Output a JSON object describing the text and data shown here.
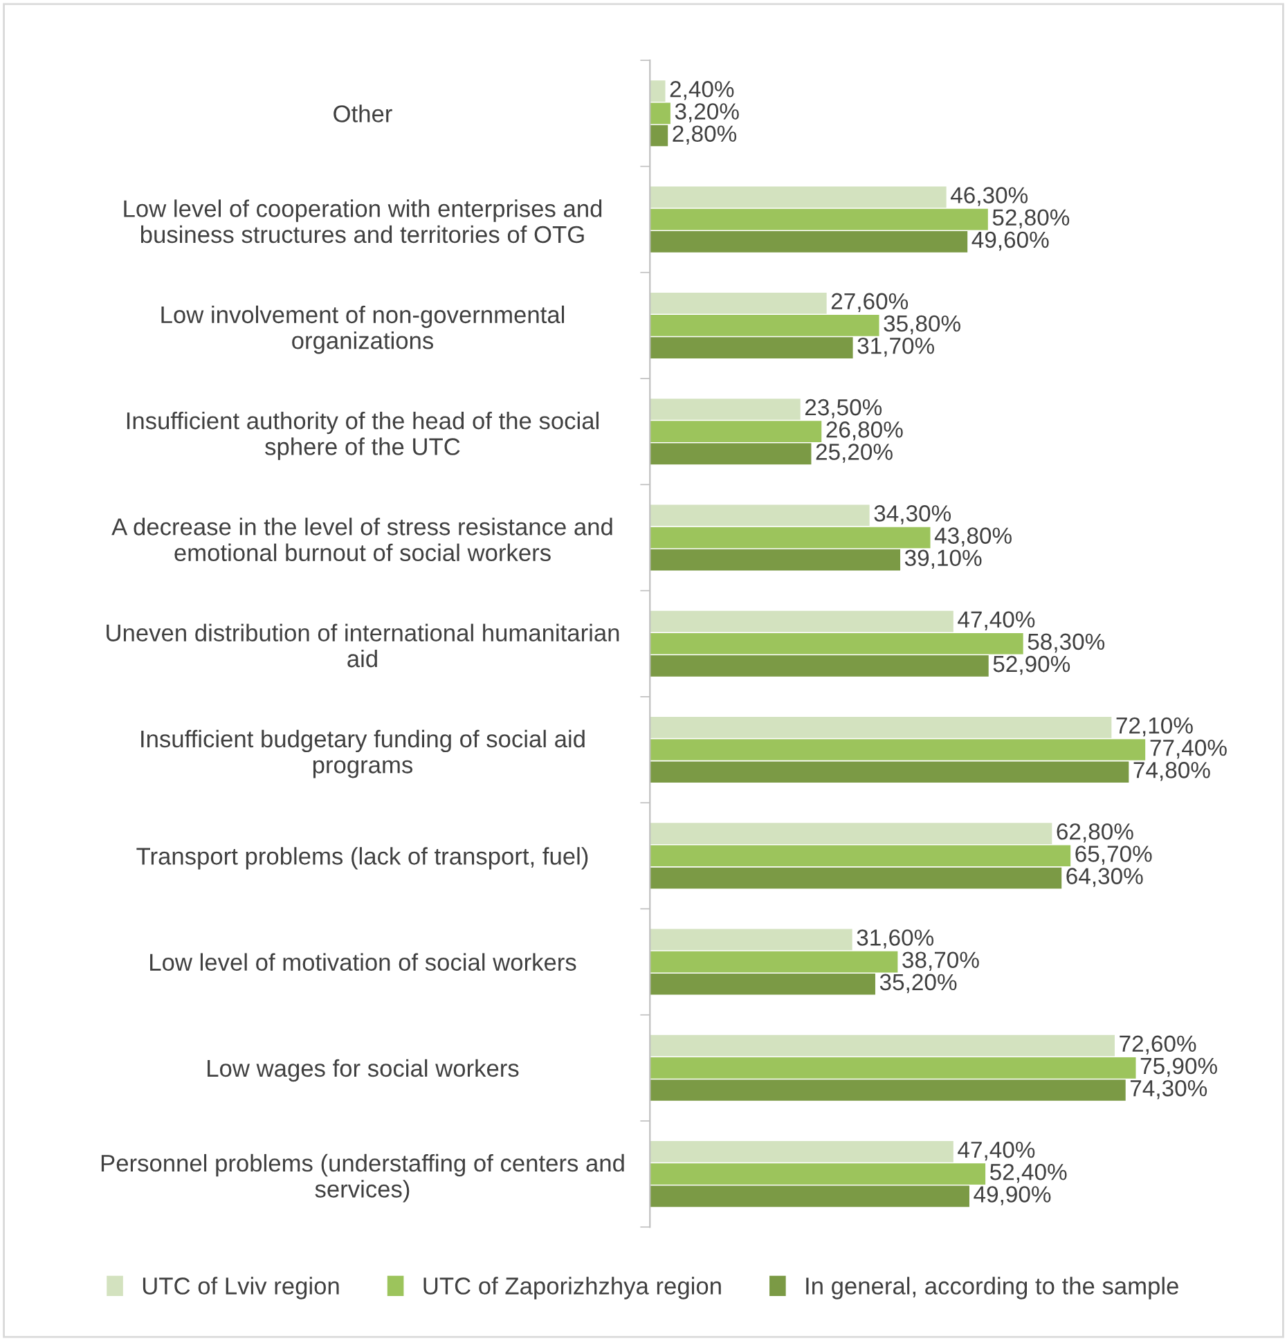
{
  "chart_data": {
    "type": "bar",
    "orientation": "horizontal",
    "categories": [
      "Other",
      "Low level of cooperation with enterprises and\nbusiness structures and territories of OTG",
      "Low involvement of non-governmental\norganizations",
      "Insufficient authority of the head of the social\nsphere of the UTC",
      "A decrease in the level of stress resistance and\nemotional burnout of social workers",
      "Uneven distribution of international humanitarian\naid",
      "Insufficient budgetary funding of social aid\nprograms",
      "Transport problems (lack of transport, fuel)",
      "Low level of motivation of social workers",
      "Low wages for social workers",
      "Personnel problems (understaffing of centers and\nservices)"
    ],
    "series": [
      {
        "name": "UTC of Lviv region",
        "color": "#d3e2bf",
        "values": [
          2.4,
          46.3,
          27.6,
          23.5,
          34.3,
          47.4,
          72.1,
          62.8,
          31.6,
          72.6,
          47.4
        ],
        "value_labels": [
          "2,40%",
          "46,30%",
          "27,60%",
          "23,50%",
          "34,30%",
          "47,40%",
          "72,10%",
          "62,80%",
          "31,60%",
          "72,60%",
          "47,40%"
        ]
      },
      {
        "name": "UTC of Zaporizhzhya region",
        "color": "#9cc45c",
        "values": [
          3.2,
          52.8,
          35.8,
          26.8,
          43.8,
          58.3,
          77.4,
          65.7,
          38.7,
          75.9,
          52.4
        ],
        "value_labels": [
          "3,20%",
          "52,80%",
          "35,80%",
          "26,80%",
          "43,80%",
          "58,30%",
          "77,40%",
          "65,70%",
          "38,70%",
          "75,90%",
          "52,40%"
        ]
      },
      {
        "name": "In general, according to the sample",
        "color": "#7b9a45",
        "values": [
          2.8,
          49.6,
          31.7,
          25.2,
          39.1,
          52.9,
          74.8,
          64.3,
          35.2,
          74.3,
          49.9
        ],
        "value_labels": [
          "2,80%",
          "49,60%",
          "31,70%",
          "25,20%",
          "39,10%",
          "52,90%",
          "74,80%",
          "64,30%",
          "35,20%",
          "74,30%",
          "49,90%"
        ]
      }
    ],
    "legend": "bottom",
    "grid": false
  }
}
